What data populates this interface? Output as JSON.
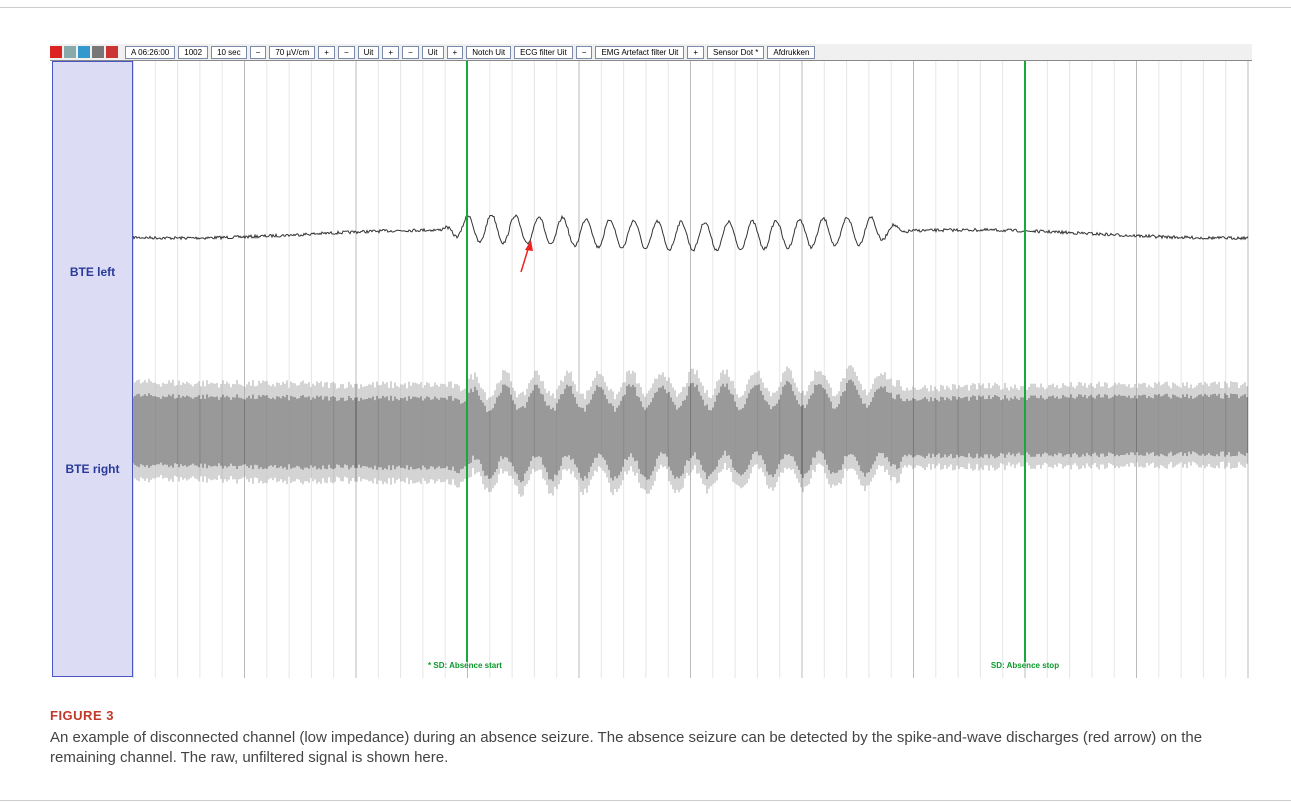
{
  "toolbar": {
    "items": [
      "A 06:26:00",
      "1002",
      "10 sec",
      "−",
      "70 µV/cm",
      "+",
      "−",
      "Uit",
      "+",
      "−",
      "Uit",
      "+",
      "Notch Uit",
      "ECG filter Uit",
      "−",
      "EMG Artefact filter Uit",
      "+",
      "Sensor Dot *",
      "Afdrukken"
    ]
  },
  "channels": [
    "BTE left",
    "BTE right"
  ],
  "annotations": [
    "* SD: Absence start",
    "SD: Absence stop"
  ],
  "figure": {
    "label": "FIGURE 3",
    "caption": "An example of disconnected channel (low impedance) during an absence seizure. The absence seizure can be detected by the spike-and-wave discharges (red arrow) on the remaining channel. The raw, unfiltered signal is shown here."
  }
}
